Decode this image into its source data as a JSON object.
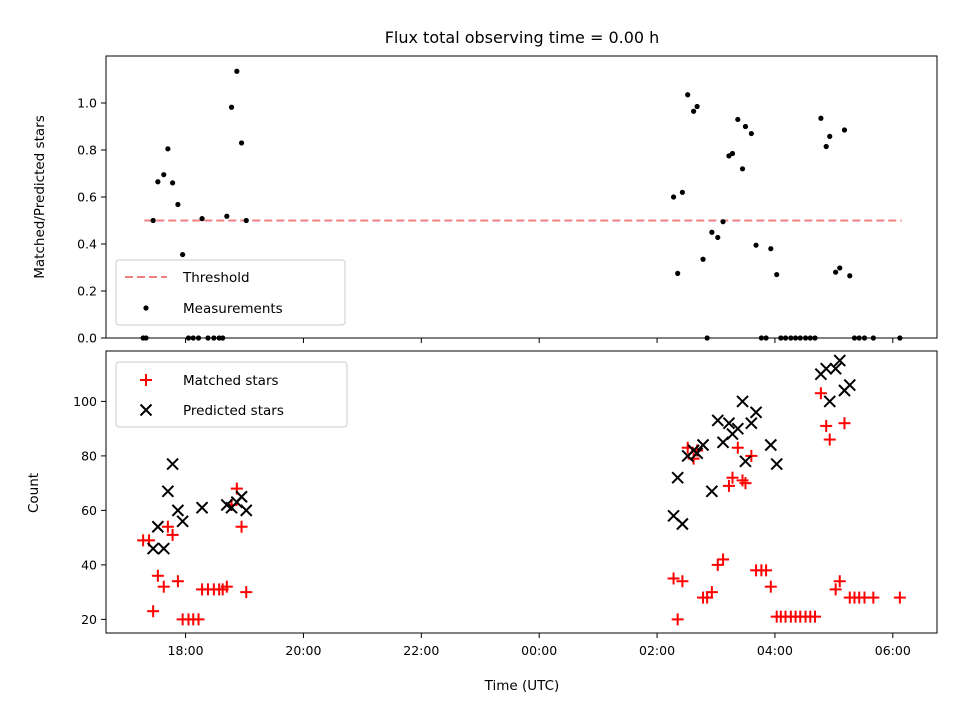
{
  "figure": {
    "title": "Flux total observing time = 0.00 h"
  },
  "chart_data": [
    {
      "type": "scatter",
      "ylabel": "Matched/Predicted stars",
      "xlabel": "",
      "x_unit": "hours since 00:00 UTC (negative = previous day)",
      "xlim": [
        -7.35,
        6.75
      ],
      "ylim": [
        0,
        1.2
      ],
      "yticks": [
        0.0,
        0.2,
        0.4,
        0.6,
        0.8,
        1.0
      ],
      "yticklabels": [
        "0.0",
        "0.2",
        "0.4",
        "0.6",
        "0.8",
        "1.0"
      ],
      "grid": false,
      "legend": "lower-left",
      "threshold": {
        "name": "Threshold",
        "value": 0.5,
        "x_range": [
          -6.7,
          6.15
        ],
        "color": "#f08080"
      },
      "series": [
        {
          "name": "Measurements",
          "color": "#000000",
          "marker": "dot",
          "points": [
            [
              -6.72,
              0.0
            ],
            [
              -6.67,
              0.0
            ],
            [
              -6.55,
              0.5
            ],
            [
              -6.47,
              0.665
            ],
            [
              -6.37,
              0.695
            ],
            [
              -6.3,
              0.805
            ],
            [
              -6.22,
              0.66
            ],
            [
              -6.13,
              0.568
            ],
            [
              -6.05,
              0.355
            ],
            [
              -5.95,
              0.0
            ],
            [
              -5.87,
              0.0
            ],
            [
              -5.78,
              0.0
            ],
            [
              -5.72,
              0.508
            ],
            [
              -5.62,
              0.0
            ],
            [
              -5.52,
              0.0
            ],
            [
              -5.43,
              0.0
            ],
            [
              -5.37,
              0.0
            ],
            [
              -5.3,
              0.518
            ],
            [
              -5.22,
              0.982
            ],
            [
              -5.13,
              1.135
            ],
            [
              -5.05,
              0.83
            ],
            [
              -4.97,
              0.5
            ],
            [
              2.28,
              0.6
            ],
            [
              2.35,
              0.275
            ],
            [
              2.43,
              0.62
            ],
            [
              2.52,
              1.035
            ],
            [
              2.62,
              0.965
            ],
            [
              2.68,
              0.985
            ],
            [
              2.78,
              0.335
            ],
            [
              2.85,
              0.0
            ],
            [
              2.93,
              0.45
            ],
            [
              3.03,
              0.428
            ],
            [
              3.12,
              0.495
            ],
            [
              3.22,
              0.775
            ],
            [
              3.28,
              0.785
            ],
            [
              3.37,
              0.93
            ],
            [
              3.45,
              0.72
            ],
            [
              3.5,
              0.9
            ],
            [
              3.6,
              0.87
            ],
            [
              3.68,
              0.395
            ],
            [
              3.77,
              0.0
            ],
            [
              3.85,
              0.0
            ],
            [
              3.93,
              0.38
            ],
            [
              4.03,
              0.27
            ],
            [
              4.1,
              0.0
            ],
            [
              4.18,
              0.0
            ],
            [
              4.27,
              0.0
            ],
            [
              4.35,
              0.0
            ],
            [
              4.43,
              0.0
            ],
            [
              4.52,
              0.0
            ],
            [
              4.6,
              0.0
            ],
            [
              4.68,
              0.0
            ],
            [
              4.78,
              0.935
            ],
            [
              4.87,
              0.815
            ],
            [
              4.93,
              0.858
            ],
            [
              5.03,
              0.28
            ],
            [
              5.1,
              0.298
            ],
            [
              5.18,
              0.885
            ],
            [
              5.27,
              0.265
            ],
            [
              5.35,
              0.0
            ],
            [
              5.43,
              0.0
            ],
            [
              5.52,
              0.0
            ],
            [
              5.67,
              0.0
            ],
            [
              6.12,
              0.0
            ]
          ]
        }
      ]
    },
    {
      "type": "scatter",
      "ylabel": "Count",
      "xlabel": "Time (UTC)",
      "x_unit": "hours since 00:00 UTC (negative = previous day)",
      "xlim": [
        -7.35,
        6.75
      ],
      "ylim": [
        15,
        118.5
      ],
      "yticks": [
        20,
        40,
        60,
        80,
        100
      ],
      "yticklabels": [
        "20",
        "40",
        "60",
        "80",
        "100"
      ],
      "xticks": [
        -6,
        -4,
        -2,
        0,
        2,
        4,
        6
      ],
      "xticklabels": [
        "18:00",
        "20:00",
        "22:00",
        "00:00",
        "02:00",
        "04:00",
        "06:00"
      ],
      "grid": false,
      "legend": "upper-left",
      "series": [
        {
          "name": "Matched stars",
          "color": "#ff0000",
          "marker": "plus",
          "points": [
            [
              -6.72,
              49
            ],
            [
              -6.62,
              49
            ],
            [
              -6.55,
              23
            ],
            [
              -6.47,
              36
            ],
            [
              -6.37,
              32
            ],
            [
              -6.3,
              54
            ],
            [
              -6.22,
              51
            ],
            [
              -6.13,
              34
            ],
            [
              -6.05,
              20
            ],
            [
              -5.95,
              20
            ],
            [
              -5.87,
              20
            ],
            [
              -5.78,
              20
            ],
            [
              -5.72,
              31
            ],
            [
              -5.62,
              31
            ],
            [
              -5.52,
              31
            ],
            [
              -5.43,
              31
            ],
            [
              -5.37,
              31
            ],
            [
              -5.3,
              32
            ],
            [
              -5.22,
              62
            ],
            [
              -5.13,
              68
            ],
            [
              -5.05,
              54
            ],
            [
              -4.97,
              30
            ],
            [
              2.28,
              35
            ],
            [
              2.35,
              20
            ],
            [
              2.43,
              34
            ],
            [
              2.52,
              83
            ],
            [
              2.62,
              79
            ],
            [
              2.68,
              82
            ],
            [
              2.78,
              28
            ],
            [
              2.85,
              28
            ],
            [
              2.93,
              30
            ],
            [
              3.03,
              40
            ],
            [
              3.12,
              42
            ],
            [
              3.22,
              69
            ],
            [
              3.28,
              72
            ],
            [
              3.37,
              83
            ],
            [
              3.45,
              71
            ],
            [
              3.5,
              70
            ],
            [
              3.6,
              80
            ],
            [
              3.68,
              38
            ],
            [
              3.77,
              38
            ],
            [
              3.85,
              38
            ],
            [
              3.93,
              32
            ],
            [
              4.03,
              21
            ],
            [
              4.1,
              21
            ],
            [
              4.18,
              21
            ],
            [
              4.27,
              21
            ],
            [
              4.35,
              21
            ],
            [
              4.43,
              21
            ],
            [
              4.52,
              21
            ],
            [
              4.6,
              21
            ],
            [
              4.68,
              21
            ],
            [
              4.78,
              103
            ],
            [
              4.87,
              91
            ],
            [
              4.93,
              86
            ],
            [
              5.03,
              31
            ],
            [
              5.1,
              34
            ],
            [
              5.18,
              92
            ],
            [
              5.27,
              28
            ],
            [
              5.35,
              28
            ],
            [
              5.43,
              28
            ],
            [
              5.52,
              28
            ],
            [
              5.67,
              28
            ],
            [
              6.12,
              28
            ]
          ]
        },
        {
          "name": "Predicted stars",
          "color": "#000000",
          "marker": "x",
          "points": [
            [
              -6.55,
              46
            ],
            [
              -6.47,
              54
            ],
            [
              -6.37,
              46
            ],
            [
              -6.3,
              67
            ],
            [
              -6.22,
              77
            ],
            [
              -6.13,
              60
            ],
            [
              -6.05,
              56
            ],
            [
              -5.72,
              61
            ],
            [
              -5.3,
              62
            ],
            [
              -5.22,
              61
            ],
            [
              -5.13,
              63
            ],
            [
              -5.05,
              65
            ],
            [
              -4.97,
              60
            ],
            [
              2.28,
              58
            ],
            [
              2.35,
              72
            ],
            [
              2.43,
              55
            ],
            [
              2.52,
              80
            ],
            [
              2.62,
              82
            ],
            [
              2.68,
              81
            ],
            [
              2.78,
              84
            ],
            [
              2.93,
              67
            ],
            [
              3.03,
              93
            ],
            [
              3.12,
              85
            ],
            [
              3.22,
              92
            ],
            [
              3.28,
              88
            ],
            [
              3.37,
              90
            ],
            [
              3.45,
              100
            ],
            [
              3.5,
              78
            ],
            [
              3.6,
              92
            ],
            [
              3.68,
              96
            ],
            [
              3.93,
              84
            ],
            [
              4.03,
              77
            ],
            [
              4.78,
              110
            ],
            [
              4.87,
              112
            ],
            [
              4.93,
              100
            ],
            [
              5.03,
              112
            ],
            [
              5.1,
              115
            ],
            [
              5.18,
              104
            ],
            [
              5.27,
              106
            ]
          ]
        }
      ]
    }
  ]
}
